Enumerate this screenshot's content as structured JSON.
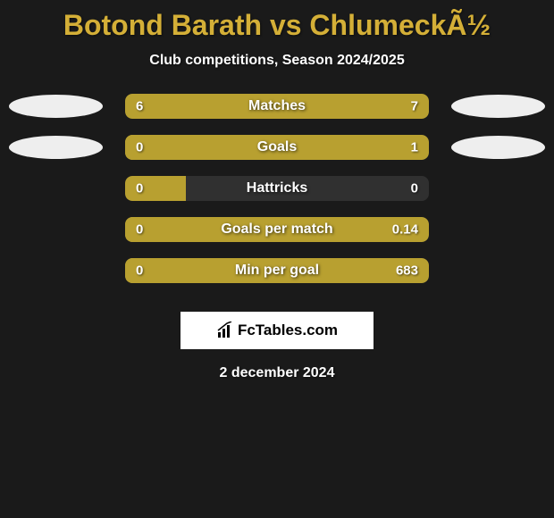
{
  "title": "Botond Barath vs ChlumeckÃ½",
  "subtitle": "Club competitions, Season 2024/2025",
  "background_color": "#1a1a1a",
  "title_color": "#d4af37",
  "bar_fill_color": "#b8a030",
  "bar_bg_color": "rgba(100,100,100,0.3)",
  "text_color": "#ffffff",
  "stats": [
    {
      "label": "Matches",
      "left_value": "6",
      "right_value": "7",
      "left_pct": 46.2,
      "right_pct": 53.8,
      "show_ellipses": true
    },
    {
      "label": "Goals",
      "left_value": "0",
      "right_value": "1",
      "left_pct": 20,
      "right_pct": 100,
      "show_ellipses": true,
      "right_full": true
    },
    {
      "label": "Hattricks",
      "left_value": "0",
      "right_value": "0",
      "left_pct": 20,
      "right_pct": 0,
      "show_ellipses": false
    },
    {
      "label": "Goals per match",
      "left_value": "0",
      "right_value": "0.14",
      "left_pct": 20,
      "right_pct": 100,
      "show_ellipses": false,
      "right_full": true
    },
    {
      "label": "Min per goal",
      "left_value": "0",
      "right_value": "683",
      "left_pct": 20,
      "right_pct": 100,
      "show_ellipses": false,
      "right_full": true
    }
  ],
  "logo_text": "FcTables.com",
  "date": "2 december 2024"
}
